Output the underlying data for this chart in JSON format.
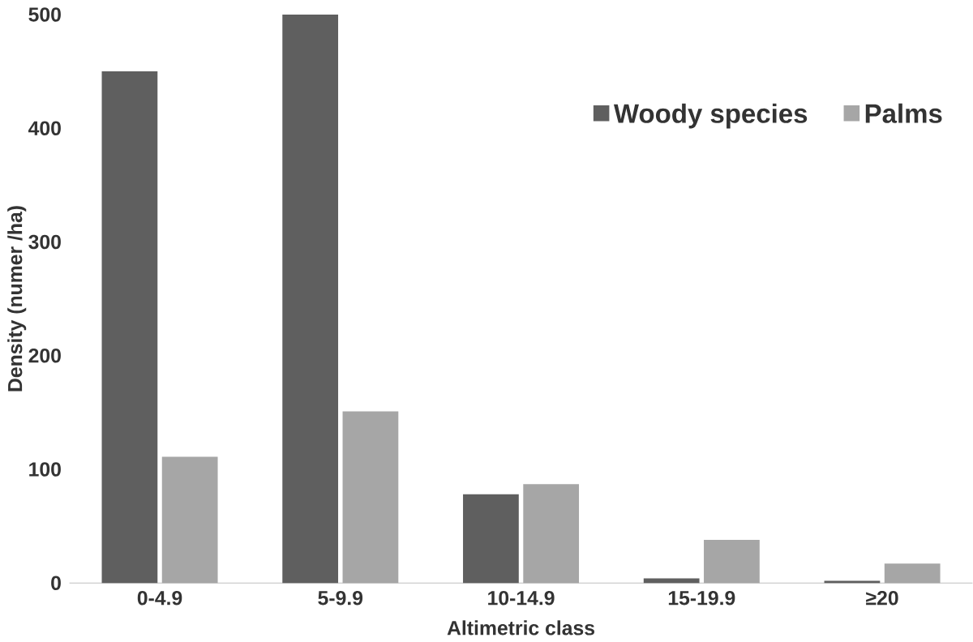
{
  "chart_data": {
    "type": "bar",
    "xlabel": "Altimetric class",
    "ylabel": "Density (numer /ha)",
    "categories": [
      "0-4.9",
      "5-9.9",
      "10-14.9",
      "15-19.9",
      "≥20"
    ],
    "series": [
      {
        "name": "Woody species",
        "color": "#5f5f5f",
        "values": [
          450,
          500,
          78,
          4,
          2
        ]
      },
      {
        "name": "Palms",
        "color": "#a6a6a6",
        "values": [
          111,
          151,
          87,
          38,
          17
        ]
      }
    ],
    "ylim": [
      0,
      500
    ],
    "yticks": [
      0,
      100,
      200,
      300,
      400,
      500
    ],
    "grid": false,
    "legend": "top right"
  }
}
